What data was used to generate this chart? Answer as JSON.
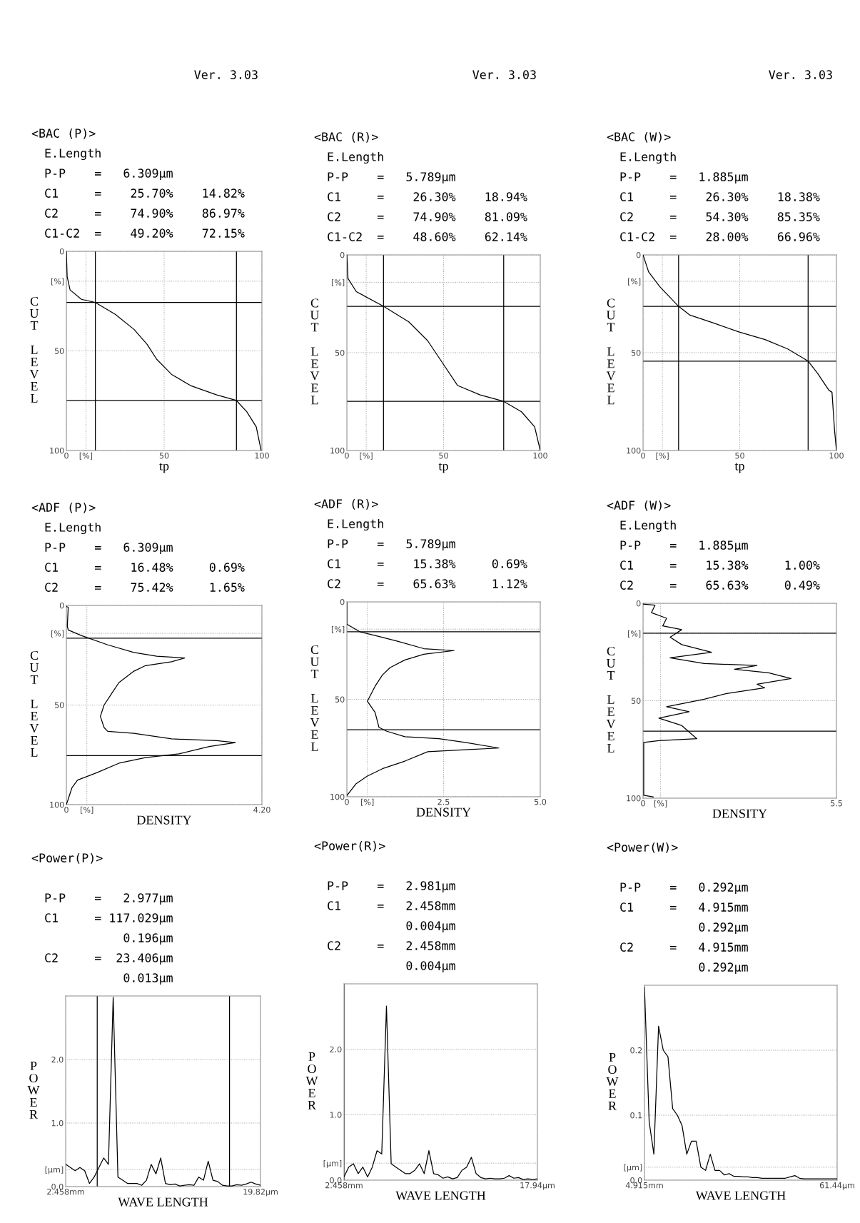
{
  "chart_data": [
    {
      "type": "line",
      "title": "<BAC (P)>",
      "subtitle": "Ver. 3.03",
      "annotations": [
        "E.Length",
        "P-P    =   6.309μm",
        "C1     =    25.70%    14.82%",
        "C2     =    74.90%    86.97%",
        "C1-C2  =    49.20%    72.15%"
      ],
      "xlabel": "tp",
      "ylabel": "CUT LEVEL",
      "xlim": [
        0,
        100
      ],
      "ylim": [
        100,
        0
      ],
      "xticks": [
        0,
        {
          "value": 10,
          "label": "[%]"
        },
        50,
        100
      ],
      "yticks": [
        0,
        {
          "value": 15,
          "label": "[%]"
        },
        50,
        100
      ],
      "grid": true,
      "ref_lines": [
        {
          "axis": "y",
          "value": 25.7
        },
        {
          "axis": "y",
          "value": 74.9
        },
        {
          "axis": "x",
          "value": 14.82
        },
        {
          "axis": "x",
          "value": 86.97
        }
      ],
      "series": [
        {
          "color": "#000000",
          "x": [
            0,
            0.4,
            1.9,
            7.7,
            14.82,
            25,
            34.6,
            41.3,
            46.2,
            53.8,
            63.5,
            76.9,
            86.97,
            92.3,
            97.1,
            99.6
          ],
          "values": [
            0,
            12.8,
            19.4,
            24.1,
            25.7,
            31.6,
            39.2,
            46.7,
            54.2,
            61.8,
            67.4,
            72.1,
            74.9,
            80.6,
            88.1,
            100
          ]
        }
      ]
    },
    {
      "type": "line",
      "title": "<ADF (P)>",
      "annotations": [
        "E.Length",
        "P-P    =   6.309μm",
        "C1     =    16.48%     0.69%",
        "C2     =    75.42%     1.65%"
      ],
      "xlabel": "DENSITY",
      "ylabel": "CUT LEVEL",
      "xlim": [
        0,
        4.2
      ],
      "ylim": [
        100,
        0
      ],
      "xticks": [
        0,
        {
          "value": 0.44,
          "label": "[%]"
        },
        {
          "value": 4.2,
          "label": "4.20"
        }
      ],
      "yticks": [
        0,
        {
          "value": 14,
          "label": "[%]"
        },
        50,
        100
      ],
      "grid": true,
      "ref_lines": [
        {
          "axis": "y",
          "value": 16.48
        },
        {
          "axis": "y",
          "value": 75.42
        }
      ],
      "series": [
        {
          "color": "#000000",
          "x": [
            0,
            0.04,
            0.02,
            0.04,
            0.32,
            0.89,
            1.45,
            1.94,
            2.54,
            2.26,
            1.7,
            1.45,
            1.13,
            0.97,
            0.81,
            0.73,
            0.81,
            0.89,
            1.45,
            2.26,
            3.23,
            3.63,
            3.07,
            2.42,
            1.7,
            1.13,
            0.65,
            0.24,
            0.12,
            0.04,
            0
          ],
          "values": [
            0.6,
            0.9,
            10.4,
            12.3,
            15.1,
            19.8,
            23.6,
            25.5,
            26.4,
            28.3,
            30.2,
            33,
            38.7,
            44.3,
            50,
            55.7,
            61.3,
            63.2,
            64.2,
            67,
            67.9,
            68.9,
            70.8,
            74.5,
            76.4,
            79.2,
            84,
            87.7,
            91.5,
            97.2,
            100
          ]
        }
      ]
    },
    {
      "type": "line",
      "title": "<Power(P)>",
      "annotations": [
        "P-P    =   2.977μm",
        "C1     = 117.029μm",
        "           0.196μm",
        "C2     =  23.406μm",
        "           0.013μm"
      ],
      "xlabel": "WAVE LENGTH",
      "ylabel": "POWER",
      "categories": [
        "2.458mm",
        null,
        null,
        null,
        null,
        null,
        null,
        null,
        null,
        null,
        null,
        null,
        null,
        null,
        null,
        null,
        null,
        null,
        null,
        null,
        null,
        null,
        null,
        null,
        null,
        null,
        null,
        null,
        null,
        null,
        null,
        null,
        null,
        null,
        null,
        null,
        null,
        null,
        null,
        null,
        null,
        "19.82μm"
      ],
      "ylim": [
        0,
        3.0
      ],
      "yticks": [
        {
          "value": 0,
          "label": "0.0"
        },
        {
          "value": 0.27,
          "label": "[μm]"
        },
        {
          "value": 1,
          "label": "1.0"
        },
        {
          "value": 2,
          "label": "2.0"
        }
      ],
      "grid": true,
      "series": [
        {
          "color": "#000000",
          "values": [
            0.35,
            0.3,
            0.25,
            0.3,
            0.25,
            0.05,
            0.15,
            0.3,
            0.45,
            0.35,
            2.98,
            0.15,
            0.1,
            0.05,
            0.05,
            0.05,
            0.02,
            0.1,
            0.35,
            0.2,
            0.45,
            0.05,
            0.03,
            0.04,
            0.01,
            0.02,
            0.03,
            0.02,
            0.15,
            0.1,
            0.4,
            0.1,
            0.08,
            0.02,
            0.01,
            0.01,
            0.03,
            0.02,
            0.04,
            0.07,
            0.04,
            0.02
          ]
        }
      ]
    },
    {
      "type": "line",
      "title": "<BAC (R)>",
      "subtitle": "Ver. 3.03",
      "annotations": [
        "E.Length",
        "P-P    =   5.789μm",
        "C1     =    26.30%    18.94%",
        "C2     =    74.90%    81.09%",
        "C1-C2  =    48.60%    62.14%"
      ],
      "xlabel": "tp",
      "ylabel": "CUT LEVEL",
      "xlim": [
        0,
        100
      ],
      "ylim": [
        100,
        0
      ],
      "xticks": [
        0,
        {
          "value": 10,
          "label": "[%]"
        },
        50,
        100
      ],
      "yticks": [
        0,
        {
          "value": 14,
          "label": "[%]"
        },
        50,
        100
      ],
      "grid": true,
      "ref_lines": [
        {
          "axis": "y",
          "value": 26.3
        },
        {
          "axis": "y",
          "value": 74.9
        },
        {
          "axis": "x",
          "value": 18.94
        },
        {
          "axis": "x",
          "value": 81.09
        }
      ],
      "series": [
        {
          "color": "#000000",
          "x": [
            0,
            0.6,
            4.9,
            18.94,
            32,
            41.7,
            49.5,
            57.3,
            68.9,
            81.09,
            90.3,
            97.1,
            100
          ],
          "values": [
            0,
            12.1,
            18.8,
            26.3,
            34.2,
            43.8,
            55.3,
            66.8,
            71.6,
            74.9,
            80.2,
            87.9,
            100
          ]
        }
      ]
    },
    {
      "type": "line",
      "title": "<ADF (R)>",
      "annotations": [
        "E.Length",
        "P-P    =   5.789μm",
        "C1     =    15.38%     0.69%",
        "C2     =    65.63%     1.12%"
      ],
      "xlabel": "DENSITY",
      "ylabel": "CUT LEVEL",
      "xlim": [
        0,
        5.0
      ],
      "ylim": [
        100,
        0
      ],
      "xticks": [
        0,
        {
          "value": 0.53,
          "label": "[%]"
        },
        2.5,
        {
          "value": 5,
          "label": "5.0"
        }
      ],
      "yticks": [
        0,
        {
          "value": 14,
          "label": "[%]"
        },
        50,
        100
      ],
      "grid": true,
      "ref_lines": [
        {
          "axis": "y",
          "value": 15.38
        },
        {
          "axis": "y",
          "value": 65.63
        }
      ],
      "series": [
        {
          "color": "#000000",
          "x": [
            0,
            0,
            0.34,
            0.73,
            1.31,
            1.99,
            2.77,
            1.99,
            1.5,
            1.12,
            0.92,
            0.73,
            0.53,
            0.73,
            0.83,
            1.02,
            1.5,
            2.38,
            3.06,
            3.93,
            2.96,
            2.09,
            1.5,
            0.92,
            0.53,
            0.24,
            0
          ],
          "values": [
            0.6,
            11.5,
            15.4,
            17.3,
            20.2,
            24,
            25,
            26.9,
            29.8,
            33.7,
            37.5,
            43.3,
            51,
            56.7,
            64.4,
            66.3,
            69.2,
            70.2,
            72.1,
            75,
            76,
            76.9,
            81.7,
            85.6,
            89.4,
            93.3,
            99.4
          ]
        }
      ]
    },
    {
      "type": "line",
      "title": "<Power(R)>",
      "annotations": [
        "P-P    =   2.981μm",
        "C1     =   2.458mm",
        "           0.004μm",
        "C2     =   2.458mm",
        "           0.004μm"
      ],
      "xlabel": "WAVE LENGTH",
      "ylabel": "POWER",
      "categories": [
        "2.458mm",
        null,
        null,
        null,
        null,
        null,
        null,
        null,
        null,
        null,
        null,
        null,
        null,
        null,
        null,
        null,
        null,
        null,
        null,
        null,
        null,
        null,
        null,
        null,
        null,
        null,
        null,
        null,
        null,
        null,
        null,
        null,
        null,
        null,
        null,
        null,
        null,
        null,
        null,
        null,
        null,
        "17.94μm"
      ],
      "ylim": [
        0,
        3.0
      ],
      "yticks": [
        {
          "value": 0,
          "label": "0.0"
        },
        {
          "value": 0.26,
          "label": "[μm]"
        },
        {
          "value": 1,
          "label": "1.0"
        },
        {
          "value": 2,
          "label": "2.0"
        }
      ],
      "grid": true,
      "series": [
        {
          "color": "#000000",
          "values": [
            0.05,
            0.2,
            0.25,
            0.1,
            0.2,
            0.05,
            0.2,
            0.45,
            0.4,
            2.66,
            0.25,
            0.2,
            0.15,
            0.1,
            0.1,
            0.15,
            0.25,
            0.1,
            0.45,
            0.1,
            0.08,
            0.03,
            0.05,
            0.02,
            0.04,
            0.15,
            0.2,
            0.35,
            0.1,
            0.04,
            0.02,
            0.03,
            0.02,
            0.02,
            0.03,
            0.07,
            0.03,
            0.04,
            0.01,
            0.02,
            0.01,
            0.02
          ]
        }
      ]
    },
    {
      "type": "line",
      "title": "<BAC (W)>",
      "subtitle": "Ver. 3.03",
      "annotations": [
        "E.Length",
        "P-P    =   1.885μm",
        "C1     =    26.30%    18.38%",
        "C2     =    54.30%    85.35%",
        "C1-C2  =    28.00%    66.96%"
      ],
      "xlabel": "tp",
      "ylabel": "CUT LEVEL",
      "xlim": [
        0,
        100
      ],
      "ylim": [
        100,
        0
      ],
      "xticks": [
        0,
        {
          "value": 10,
          "label": "[%]"
        },
        50,
        100
      ],
      "yticks": [
        0,
        {
          "value": 13.5,
          "label": "[%]"
        },
        50,
        100
      ],
      "grid": true,
      "ref_lines": [
        {
          "axis": "y",
          "value": 26.3
        },
        {
          "axis": "y",
          "value": 54.3
        },
        {
          "axis": "x",
          "value": 18.38
        },
        {
          "axis": "x",
          "value": 85.35
        }
      ],
      "series": [
        {
          "color": "#000000",
          "x": [
            0,
            2.9,
            8.7,
            18.38,
            24.3,
            35.9,
            49.5,
            63.1,
            74.8,
            85.35,
            90.3,
            96.1,
            97.7,
            99,
            100
          ],
          "values": [
            0,
            8.7,
            16.3,
            26.3,
            30.8,
            34.6,
            39.4,
            43.3,
            48.1,
            54.3,
            60.6,
            69.2,
            70.2,
            89.4,
            100
          ]
        }
      ]
    },
    {
      "type": "line",
      "title": "<ADF (W)>",
      "annotations": [
        "E.Length",
        "P-P    =   1.885μm",
        "C1     =    15.38%     1.00%",
        "C2     =    65.63%     0.49%"
      ],
      "xlabel": "DENSITY",
      "ylabel": "CUT LEVEL",
      "xlim": [
        0,
        5.5
      ],
      "ylim": [
        100,
        0
      ],
      "xticks": [
        0,
        {
          "value": 0.5,
          "label": "[%]"
        },
        5.5
      ],
      "yticks": [
        0,
        {
          "value": 15.5,
          "label": "[%]"
        },
        50,
        100
      ],
      "grid": true,
      "ref_lines": [
        {
          "axis": "y",
          "value": 15.38
        },
        {
          "axis": "y",
          "value": 65.63
        }
      ],
      "series": [
        {
          "color": "#000000",
          "x": [
            0,
            0.34,
            0.24,
            0.67,
            0.56,
            1.1,
            0.77,
            1.1,
            1.95,
            0.77,
            1.74,
            3.24,
            2.6,
            3.57,
            4.21,
            3.24,
            3.46,
            2.38,
            1.74,
            0.67,
            1.31,
            0.45,
            1.1,
            1.53,
            0.45,
            0.02,
            0.02,
            0.02,
            0.29
          ],
          "values": [
            0.4,
            1,
            4.8,
            7.7,
            11.6,
            13.5,
            17.4,
            21.2,
            25.1,
            28,
            30.9,
            31.9,
            33.8,
            35.7,
            38.6,
            41.5,
            43.4,
            46.3,
            49.2,
            53.1,
            55.6,
            58.9,
            62.7,
            69.5,
            70.5,
            71.4,
            92.7,
            98.5,
            99.4
          ]
        }
      ]
    },
    {
      "type": "line",
      "title": "<Power(W)>",
      "annotations": [
        "P-P    =   0.292μm",
        "C1     =   4.915mm",
        "           0.292μm",
        "C2     =   4.915mm",
        "           0.292μm"
      ],
      "xlabel": "WAVE LENGTH",
      "ylabel": "POWER",
      "categories": [
        "4.915mm",
        null,
        null,
        null,
        null,
        null,
        null,
        null,
        null,
        null,
        null,
        null,
        null,
        null,
        null,
        null,
        null,
        null,
        null,
        null,
        null,
        null,
        null,
        null,
        null,
        null,
        null,
        null,
        null,
        null,
        null,
        null,
        null,
        null,
        null,
        null,
        null,
        null,
        null,
        null,
        null,
        "61.44μm"
      ],
      "ylim": [
        0,
        0.3
      ],
      "yticks": [
        {
          "value": 0,
          "label": "0.0"
        },
        {
          "value": 0.02,
          "label": "[μm]"
        },
        0.1,
        0.2
      ],
      "grid": true,
      "series": [
        {
          "color": "#000000",
          "values": [
            0.297,
            0.09,
            0.04,
            0.237,
            0.2,
            0.19,
            0.11,
            0.1,
            0.084,
            0.04,
            0.06,
            0.06,
            0.02,
            0.015,
            0.04,
            0.015,
            0.015,
            0.008,
            0.01,
            0.006,
            0.006,
            0.005,
            0.005,
            0.004,
            0.004,
            0.003,
            0.003,
            0.003,
            0.003,
            0.003,
            0.003,
            0.005,
            0.007,
            0.003,
            0.002,
            0.002,
            0.002,
            0.002,
            0.002,
            0.002,
            0.002,
            0.002
          ]
        }
      ]
    }
  ]
}
